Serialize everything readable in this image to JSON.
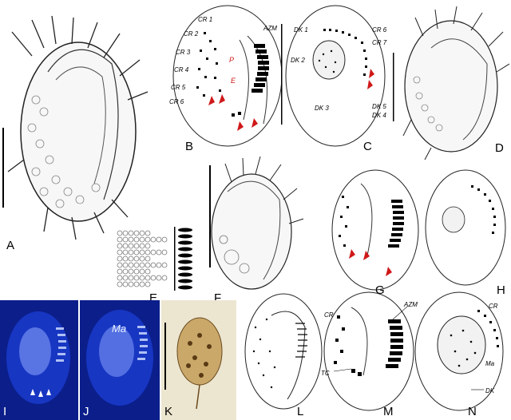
{
  "panels": {
    "A": {
      "label": "A"
    },
    "B": {
      "label": "B",
      "annotations": {
        "cr1": "CR 1",
        "cr2": "CR 2",
        "cr3": "CR 3",
        "cr4": "CR 4",
        "cr5": "CR 5",
        "cr6": "CR 6",
        "azm": "AZM",
        "p": "P",
        "e": "E"
      }
    },
    "C": {
      "label": "C",
      "annotations": {
        "dk1": "DK 1",
        "dk2": "DK 2",
        "dk3": "DK 3",
        "dk4": "DK 4",
        "dk5": "DK 5",
        "cr6": "CR 6",
        "cr7": "CR 7"
      }
    },
    "D": {
      "label": "D"
    },
    "E": {
      "label": "E"
    },
    "F": {
      "label": "F"
    },
    "G": {
      "label": "G"
    },
    "H": {
      "label": "H"
    },
    "I": {
      "label": "I"
    },
    "J": {
      "label": "J",
      "annotations": {
        "ma": "Ma"
      }
    },
    "K": {
      "label": "K"
    },
    "L": {
      "label": "L"
    },
    "M": {
      "label": "M",
      "annotations": {
        "cr": "CR",
        "azm": "AZM",
        "tc": "TC"
      }
    },
    "N": {
      "label": "N",
      "annotations": {
        "cr": "CR",
        "ma": "Ma",
        "dk": "DK"
      }
    }
  },
  "colors": {
    "ink": "#000000",
    "arrow": "#d01818",
    "fluorescence": "#1a3ccf",
    "brightfield": "#d8c89a"
  }
}
